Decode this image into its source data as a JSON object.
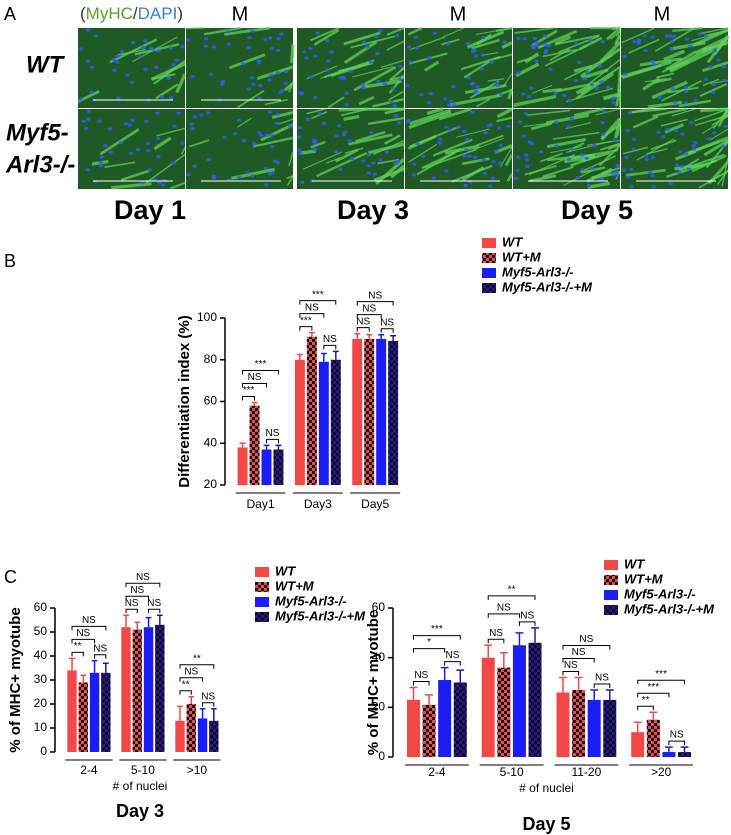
{
  "panel_labels": [
    "A",
    "B",
    "C"
  ],
  "panel_a": {
    "stain": [
      "(",
      "MyHC",
      "/",
      "DAPI",
      ")"
    ],
    "treatment_labels": [
      "M",
      "M",
      "M"
    ],
    "row_labels": [
      [
        "WT"
      ],
      [
        "Myf5-",
        "Arl3-/-"
      ]
    ],
    "days": [
      "Day 1",
      "Day 3",
      "Day 5"
    ]
  },
  "chart_data": [
    {
      "type": "bar",
      "ylabel": "Differentiation index (%)",
      "categories": [
        "Day1",
        "Day3",
        "Day5"
      ],
      "series": [
        {
          "name": "WT",
          "color": "#f24848",
          "values": [
            38,
            80,
            90
          ],
          "errors": [
            2,
            2.5,
            2.5
          ]
        },
        {
          "name": "WT+M",
          "color": "#e05050",
          "pattern": "checker",
          "values": [
            58,
            91,
            90
          ],
          "errors": [
            1.5,
            2,
            2
          ]
        },
        {
          "name": "Myf5-Arl3-/-",
          "color": "#1c1cf5",
          "values": [
            37,
            79,
            90
          ],
          "errors": [
            2,
            4,
            2
          ]
        },
        {
          "name": "Myf5-Arl3-/-+M",
          "color": "#1c1c9a",
          "pattern": "checker",
          "values": [
            37,
            80,
            89
          ],
          "errors": [
            2,
            4,
            2.5
          ]
        }
      ],
      "ylim": [
        20,
        100
      ],
      "yticks": [
        20,
        40,
        60,
        80,
        100
      ],
      "significance": [
        [
          "***",
          "NS",
          "***",
          "NS"
        ],
        [
          "***",
          "NS",
          "***",
          "NS"
        ],
        [
          "NS",
          "NS",
          "NS",
          "NS"
        ]
      ]
    },
    {
      "type": "bar",
      "title": "Day 3",
      "ylabel": "% of MHC+ myotube",
      "xlabel": "# of nuclei",
      "categories": [
        "2-4",
        "5-10",
        ">10"
      ],
      "series": [
        {
          "name": "WT",
          "color": "#f24848",
          "values": [
            34,
            52,
            13
          ],
          "errors": [
            5,
            5,
            6
          ]
        },
        {
          "name": "WT+M",
          "color": "#e05050",
          "pattern": "checker",
          "values": [
            29,
            51,
            20
          ],
          "errors": [
            3,
            3,
            3
          ]
        },
        {
          "name": "Myf5-Arl3-/-",
          "color": "#1c1cf5",
          "values": [
            33,
            52,
            14
          ],
          "errors": [
            5,
            4,
            4
          ]
        },
        {
          "name": "Myf5-Arl3-/-+M",
          "color": "#1c1c9a",
          "pattern": "checker",
          "values": [
            33,
            53,
            13
          ],
          "errors": [
            4,
            4,
            5
          ]
        }
      ],
      "ylim": [
        0,
        60
      ],
      "yticks": [
        0,
        10,
        20,
        30,
        40,
        50,
        60
      ],
      "significance": [
        [
          "**",
          "NS",
          "NS",
          "NS"
        ],
        [
          "NS",
          "NS",
          "NS",
          "NS"
        ],
        [
          "**",
          "NS",
          "**",
          "NS"
        ]
      ]
    },
    {
      "type": "bar",
      "title": "Day 5",
      "ylabel": "% of MHC+ myotube",
      "xlabel": "# of nuclei",
      "categories": [
        "2-4",
        "5-10",
        "11-20",
        ">20"
      ],
      "series": [
        {
          "name": "WT",
          "color": "#f24848",
          "values": [
            23,
            40,
            26,
            10
          ],
          "errors": [
            5,
            5,
            6,
            4
          ]
        },
        {
          "name": "WT+M",
          "color": "#e05050",
          "pattern": "checker",
          "values": [
            21,
            36,
            27,
            15
          ],
          "errors": [
            4,
            6,
            5,
            3
          ]
        },
        {
          "name": "Myf5-Arl3-/-",
          "color": "#1c1cf5",
          "values": [
            31,
            45,
            23,
            2
          ],
          "errors": [
            5,
            5,
            4,
            2
          ]
        },
        {
          "name": "Myf5-Arl3-/-+M",
          "color": "#1c1c9a",
          "pattern": "checker",
          "values": [
            30,
            46,
            23,
            2
          ],
          "errors": [
            5,
            6,
            4,
            2
          ]
        }
      ],
      "ylim": [
        0,
        60
      ],
      "yticks": [
        0,
        20,
        40,
        60
      ],
      "significance": [
        [
          "NS",
          "*",
          "***",
          "NS"
        ],
        [
          "NS",
          "NS",
          "**",
          "NS"
        ],
        [
          "NS",
          "NS",
          "NS",
          "NS"
        ],
        [
          "**",
          "***",
          "***",
          "NS"
        ]
      ]
    }
  ]
}
